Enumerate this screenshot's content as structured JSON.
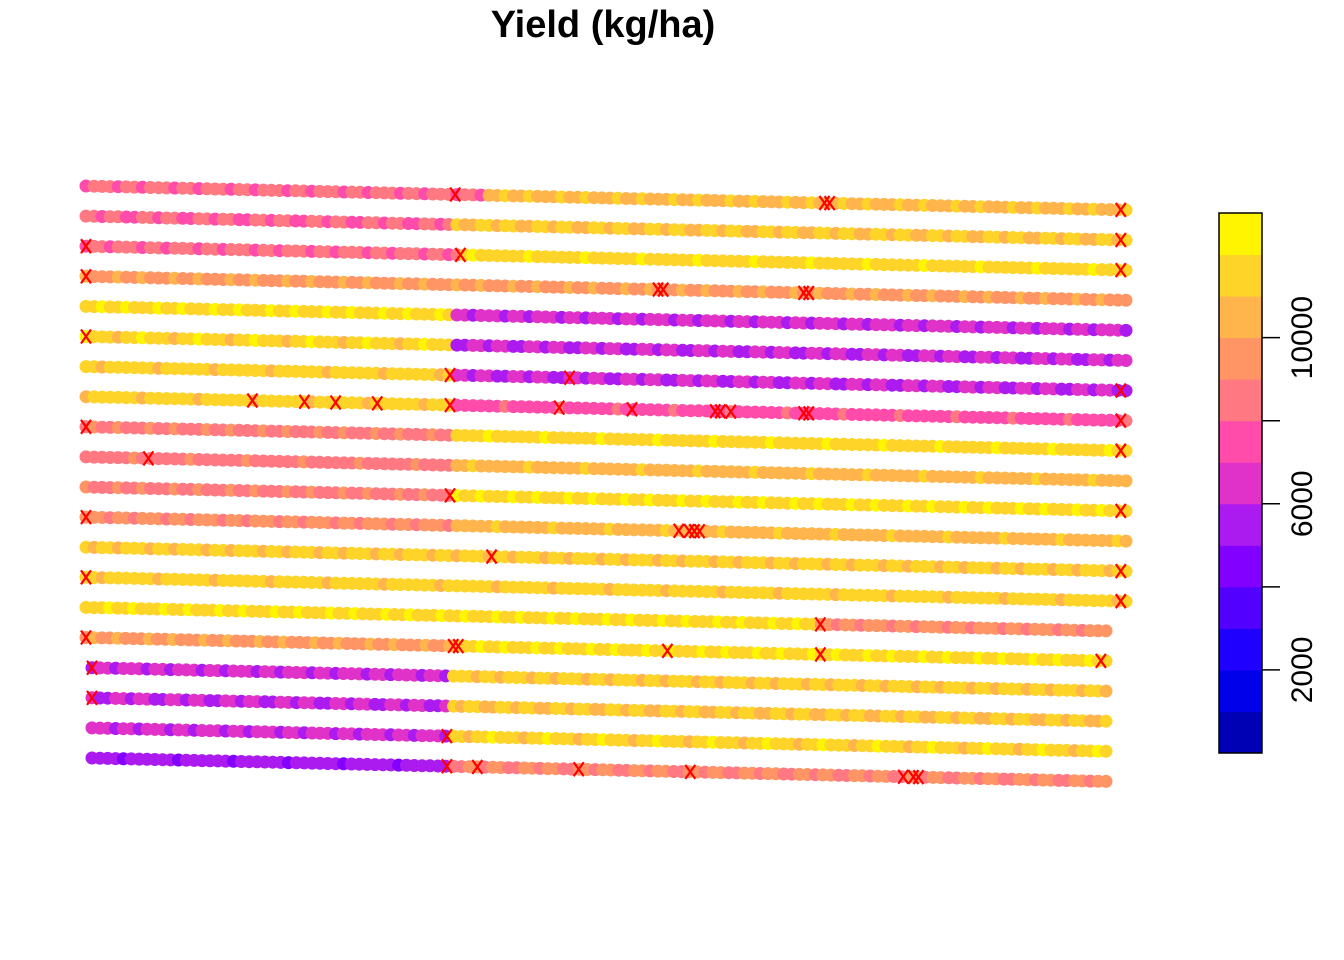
{
  "chart_data": {
    "type": "scatter",
    "title": "Yield (kg/ha)",
    "xlabel": "",
    "ylabel": "",
    "grid": false,
    "legend_position": "right",
    "colorbar": {
      "ticks": [
        "2000",
        "6000",
        "10000"
      ],
      "minor_ticks": [
        4000,
        8000
      ],
      "range": [
        0,
        13000
      ],
      "bin_width": 1000,
      "bin_colors": [
        "#0000B4",
        "#0000EA",
        "#1F00FF",
        "#5200FF",
        "#8200FF",
        "#AB1AEE",
        "#E032C8",
        "#FF4BAA",
        "#FF7882",
        "#FF9465",
        "#FFB54C",
        "#FFD429",
        "#FFF500"
      ]
    },
    "rows": [
      {
        "segments": [
          [
            0,
            0.38,
            8200
          ],
          [
            0.38,
            1,
            10800
          ]
        ],
        "flags": [
          0.355,
          0.71,
          0.715,
          0.995
        ]
      },
      {
        "segments": [
          [
            0,
            0.35,
            8000
          ],
          [
            0.35,
            1,
            11000
          ]
        ],
        "flags": [
          0.995
        ]
      },
      {
        "segments": [
          [
            0,
            0.36,
            8300
          ],
          [
            0.36,
            1,
            11600
          ]
        ],
        "flags": [
          0.0,
          0.36,
          0.995
        ]
      },
      {
        "segments": [
          [
            0,
            1,
            9700
          ]
        ],
        "flags": [
          0.0,
          0.55,
          0.555,
          0.69,
          0.695
        ]
      },
      {
        "segments": [
          [
            0,
            0.35,
            11800
          ],
          [
            0.35,
            1,
            6200
          ]
        ],
        "flags": []
      },
      {
        "segments": [
          [
            0,
            0.35,
            11500
          ],
          [
            0.35,
            1,
            6100
          ]
        ],
        "flags": [
          0.0
        ]
      },
      {
        "segments": [
          [
            0,
            0.35,
            11400
          ],
          [
            0.35,
            1,
            6000
          ]
        ],
        "flags": [
          0.35,
          0.465,
          0.995
        ]
      },
      {
        "segments": [
          [
            0,
            0.35,
            11400
          ],
          [
            0.35,
            1,
            7600
          ]
        ],
        "flags": [
          0.16,
          0.21,
          0.24,
          0.28,
          0.35,
          0.455,
          0.525,
          0.605,
          0.61,
          0.62,
          0.69,
          0.695,
          0.995
        ]
      },
      {
        "segments": [
          [
            0,
            0.35,
            8700
          ],
          [
            0.35,
            1,
            11600
          ]
        ],
        "flags": [
          0.0,
          0.995
        ]
      },
      {
        "segments": [
          [
            0,
            0.35,
            8600
          ],
          [
            0.35,
            1,
            10600
          ]
        ],
        "flags": [
          0.06
        ]
      },
      {
        "segments": [
          [
            0,
            0.35,
            8700
          ],
          [
            0.35,
            1,
            11800
          ]
        ],
        "flags": [
          0.35,
          0.995
        ]
      },
      {
        "segments": [
          [
            0,
            0.35,
            9300
          ],
          [
            0.35,
            1,
            10600
          ]
        ],
        "flags": [
          0.0,
          0.57,
          0.58,
          0.585,
          0.59
        ]
      },
      {
        "segments": [
          [
            0,
            1,
            11200
          ]
        ],
        "flags": [
          0.39,
          0.995
        ]
      },
      {
        "segments": [
          [
            0,
            1,
            11400
          ]
        ],
        "flags": [
          0.0,
          0.995
        ]
      },
      {
        "segments": [
          [
            0,
            0.72,
            11800
          ],
          [
            0.72,
            1,
            9300
          ]
        ],
        "flags": [
          0.72
        ]
      },
      {
        "segments": [
          [
            0,
            0.36,
            9800
          ],
          [
            0.36,
            1,
            11700
          ]
        ],
        "flags": [
          0.0,
          0.36,
          0.365,
          0.57,
          0.72,
          0.995
        ]
      },
      {
        "segments": [
          [
            0,
            0.35,
            6300
          ],
          [
            0.35,
            1,
            11200
          ]
        ],
        "flags": [
          0.0
        ]
      },
      {
        "segments": [
          [
            0,
            0.35,
            6000
          ],
          [
            0.35,
            1,
            11000
          ]
        ],
        "flags": [
          0.0
        ]
      },
      {
        "segments": [
          [
            0,
            0.35,
            6200
          ],
          [
            0.35,
            1,
            11500
          ]
        ],
        "flags": [
          0.35
        ]
      },
      {
        "segments": [
          [
            0,
            0.35,
            5400
          ],
          [
            0.35,
            1,
            9000
          ]
        ],
        "flags": [
          0.35,
          0.38,
          0.48,
          0.59,
          0.8,
          0.81,
          0.815
        ]
      }
    ]
  }
}
